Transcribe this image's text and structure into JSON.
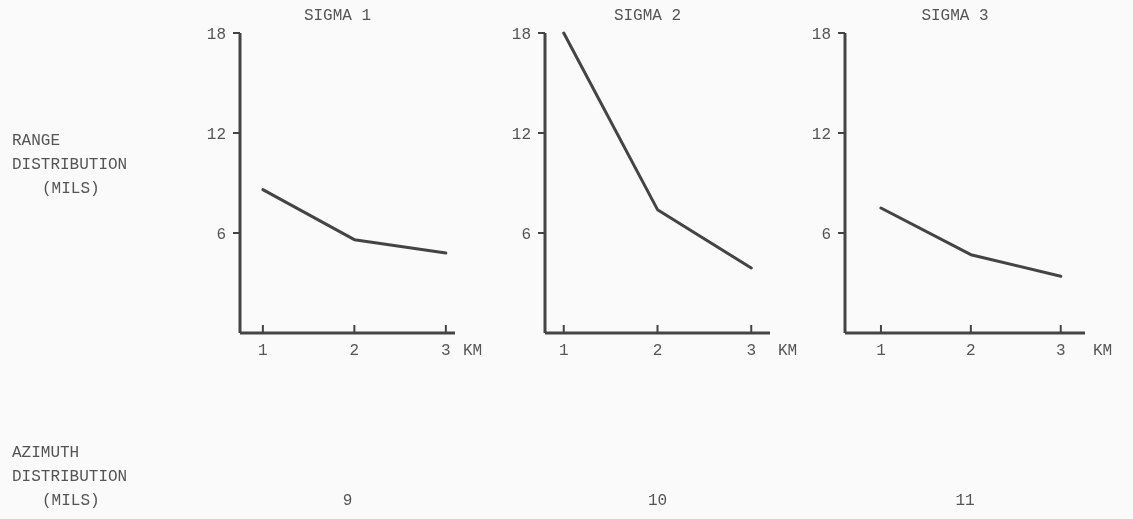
{
  "chart_data": [
    {
      "type": "line",
      "title": "SIGMA 1",
      "ylabel": "RANGE DISTRIBUTION (MILS)",
      "xlabel": "KM",
      "x": [
        1,
        2,
        3
      ],
      "series": [
        {
          "color": "#444444",
          "values": [
            8.6,
            5.6,
            4.8
          ]
        }
      ],
      "xlim": [
        0.75,
        3.1
      ],
      "xticks": [
        1,
        2,
        3
      ],
      "ylim": [
        0,
        18
      ],
      "yticks": [
        6,
        12,
        18
      ],
      "annotations": [
        "AZIMUTH DISTRIBUTION (MILS)",
        "9"
      ]
    },
    {
      "type": "line",
      "title": "SIGMA 2",
      "xlabel": "KM",
      "x": [
        1,
        2,
        3
      ],
      "series": [
        {
          "color": "#444444",
          "values": [
            18,
            7.4,
            3.9
          ]
        }
      ],
      "xlim": [
        0.8,
        3.2
      ],
      "xticks": [
        1,
        2,
        3
      ],
      "ylim": [
        0,
        18
      ],
      "yticks": [
        6,
        12,
        18
      ],
      "annotations": [
        "10"
      ]
    },
    {
      "type": "line",
      "title": "SIGMA 3",
      "xlabel": "KM",
      "x": [
        1,
        2,
        3
      ],
      "series": [
        {
          "color": "#444444",
          "values": [
            7.5,
            4.7,
            3.4
          ]
        }
      ],
      "xlim": [
        0.6,
        3.27
      ],
      "xticks": [
        1,
        2,
        3
      ],
      "ylim": [
        0,
        18
      ],
      "yticks": [
        6,
        12,
        18
      ],
      "annotations": [
        "11"
      ]
    }
  ]
}
